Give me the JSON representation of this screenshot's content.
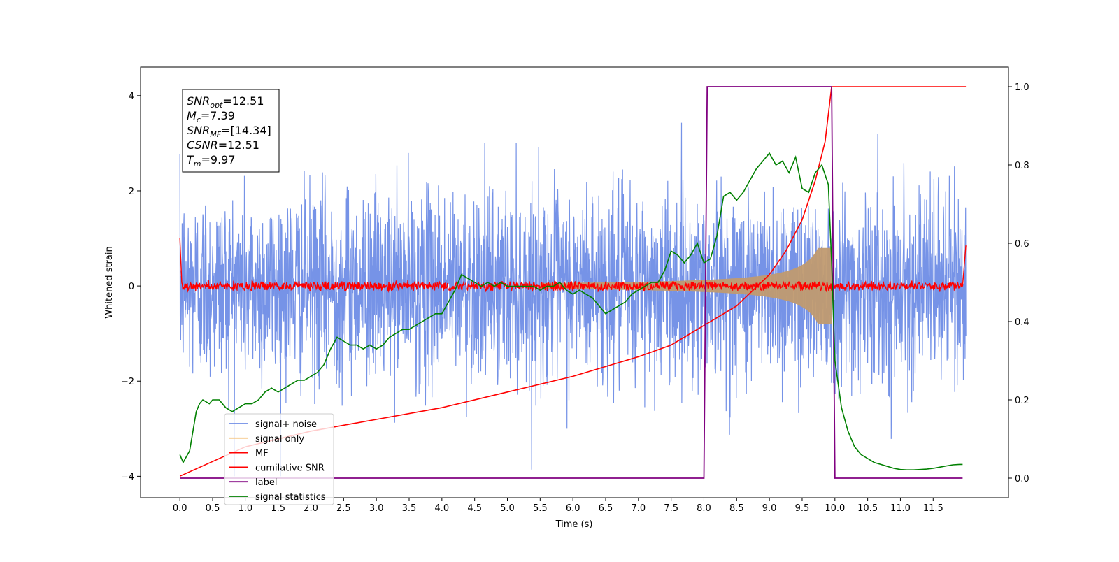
{
  "chart_data": {
    "type": "line",
    "xlabel": "Time (s)",
    "ylabel_left": "Whitened strain",
    "xlim": [
      -0.6,
      12.65
    ],
    "ylim_left": [
      -4.45,
      4.6
    ],
    "ylim_right": [
      -0.05,
      1.05
    ],
    "xticks": [
      "0.0",
      "0.5",
      "1.0",
      "1.5",
      "2.0",
      "2.5",
      "3.0",
      "3.5",
      "4.0",
      "4.5",
      "5.0",
      "5.5",
      "6.0",
      "6.5",
      "7.0",
      "7.5",
      "8.0",
      "8.5",
      "9.0",
      "9.5",
      "10.0",
      "10.5",
      "11.0",
      "11.5"
    ],
    "yticks_left": [
      "−4",
      "−2",
      "0",
      "2",
      "4"
    ],
    "yticks_right": [
      "0.0",
      "0.2",
      "0.4",
      "0.6",
      "0.8",
      "1.0"
    ],
    "annotations": [
      {
        "base": "SNR",
        "sub": "opt",
        "rest": "=12.51"
      },
      {
        "base": "M",
        "sub": "c",
        "rest": "=7.39"
      },
      {
        "base": "SNR",
        "sub": "MF",
        "rest": "=[14.34]"
      },
      {
        "base": "CSNR",
        "sub": "",
        "rest": "=12.51"
      },
      {
        "base": "T",
        "sub": "m",
        "rest": "=9.97"
      }
    ],
    "legend_position": "lower-left",
    "series": [
      {
        "name": "signal+ noise",
        "color": "#6f8de6",
        "axis": "left",
        "description_values": {
          "noise_sigma": 1.0,
          "max_abs": 4.0
        }
      },
      {
        "name": "signal only",
        "color": "#f5c98a",
        "axis": "left",
        "description_values": {
          "envelope_start": 8.0,
          "envelope_end": 9.95,
          "peak_amplitude": 0.8
        }
      },
      {
        "name": "MF",
        "color": "#ff0000",
        "axis": "left",
        "description_values": {
          "baseline": 0.0,
          "jitter": 0.12,
          "start_value": 1.0,
          "end_value": 0.85
        }
      },
      {
        "name": "cumilative SNR",
        "color": "#ff0000",
        "axis": "right",
        "x": [
          0,
          1,
          2,
          3,
          4,
          5,
          6,
          7,
          7.5,
          8,
          8.5,
          9,
          9.25,
          9.5,
          9.7,
          9.85,
          9.95,
          10,
          12
        ],
        "y": [
          0.005,
          0.08,
          0.12,
          0.15,
          0.18,
          0.22,
          0.26,
          0.31,
          0.34,
          0.39,
          0.44,
          0.52,
          0.58,
          0.66,
          0.76,
          0.86,
          1.0,
          1.0,
          1.0
        ]
      },
      {
        "name": "label",
        "color": "#800080",
        "axis": "right",
        "x": [
          0,
          8.0,
          8.05,
          9.95,
          10.0,
          11.95
        ],
        "y": [
          0,
          0,
          1,
          1,
          0,
          0
        ]
      },
      {
        "name": "signal statistics",
        "color": "#008000",
        "axis": "right",
        "x": [
          0,
          0.05,
          0.15,
          0.2,
          0.25,
          0.3,
          0.35,
          0.45,
          0.5,
          0.6,
          0.7,
          0.8,
          0.9,
          1.0,
          1.1,
          1.2,
          1.3,
          1.4,
          1.5,
          1.6,
          1.7,
          1.8,
          1.9,
          2.0,
          2.1,
          2.2,
          2.3,
          2.4,
          2.5,
          2.6,
          2.7,
          2.8,
          2.9,
          3.0,
          3.1,
          3.2,
          3.3,
          3.4,
          3.5,
          3.6,
          3.7,
          3.8,
          3.9,
          4.0,
          4.1,
          4.2,
          4.3,
          4.4,
          4.5,
          4.6,
          4.7,
          4.8,
          4.9,
          5.0,
          5.1,
          5.2,
          5.3,
          5.4,
          5.5,
          5.6,
          5.7,
          5.8,
          5.9,
          6.0,
          6.1,
          6.2,
          6.3,
          6.4,
          6.5,
          6.6,
          6.7,
          6.8,
          6.9,
          7.0,
          7.1,
          7.2,
          7.3,
          7.4,
          7.5,
          7.6,
          7.7,
          7.8,
          7.9,
          8.0,
          8.1,
          8.2,
          8.3,
          8.4,
          8.5,
          8.6,
          8.7,
          8.8,
          8.9,
          9.0,
          9.1,
          9.2,
          9.3,
          9.4,
          9.5,
          9.6,
          9.7,
          9.8,
          9.9,
          9.95,
          10.0,
          10.1,
          10.2,
          10.3,
          10.4,
          10.5,
          10.6,
          10.7,
          10.8,
          10.9,
          11.0,
          11.1,
          11.2,
          11.3,
          11.4,
          11.5,
          11.6,
          11.7,
          11.8,
          11.9,
          11.95
        ],
        "y": [
          0.06,
          0.04,
          0.07,
          0.12,
          0.17,
          0.19,
          0.2,
          0.19,
          0.2,
          0.2,
          0.18,
          0.17,
          0.18,
          0.19,
          0.19,
          0.2,
          0.22,
          0.23,
          0.22,
          0.23,
          0.24,
          0.25,
          0.25,
          0.26,
          0.27,
          0.29,
          0.33,
          0.36,
          0.35,
          0.34,
          0.34,
          0.33,
          0.34,
          0.33,
          0.34,
          0.36,
          0.37,
          0.38,
          0.38,
          0.39,
          0.4,
          0.41,
          0.42,
          0.42,
          0.45,
          0.48,
          0.52,
          0.51,
          0.5,
          0.49,
          0.5,
          0.49,
          0.5,
          0.49,
          0.49,
          0.49,
          0.49,
          0.49,
          0.48,
          0.49,
          0.49,
          0.5,
          0.48,
          0.47,
          0.48,
          0.47,
          0.46,
          0.44,
          0.42,
          0.43,
          0.44,
          0.45,
          0.47,
          0.48,
          0.49,
          0.5,
          0.5,
          0.53,
          0.58,
          0.57,
          0.55,
          0.57,
          0.6,
          0.55,
          0.56,
          0.62,
          0.72,
          0.73,
          0.71,
          0.73,
          0.76,
          0.79,
          0.81,
          0.83,
          0.8,
          0.81,
          0.78,
          0.82,
          0.74,
          0.73,
          0.78,
          0.8,
          0.75,
          0.55,
          0.3,
          0.18,
          0.12,
          0.08,
          0.06,
          0.05,
          0.04,
          0.035,
          0.03,
          0.025,
          0.022,
          0.021,
          0.021,
          0.022,
          0.023,
          0.025,
          0.028,
          0.031,
          0.034,
          0.035,
          0.035
        ]
      }
    ]
  }
}
